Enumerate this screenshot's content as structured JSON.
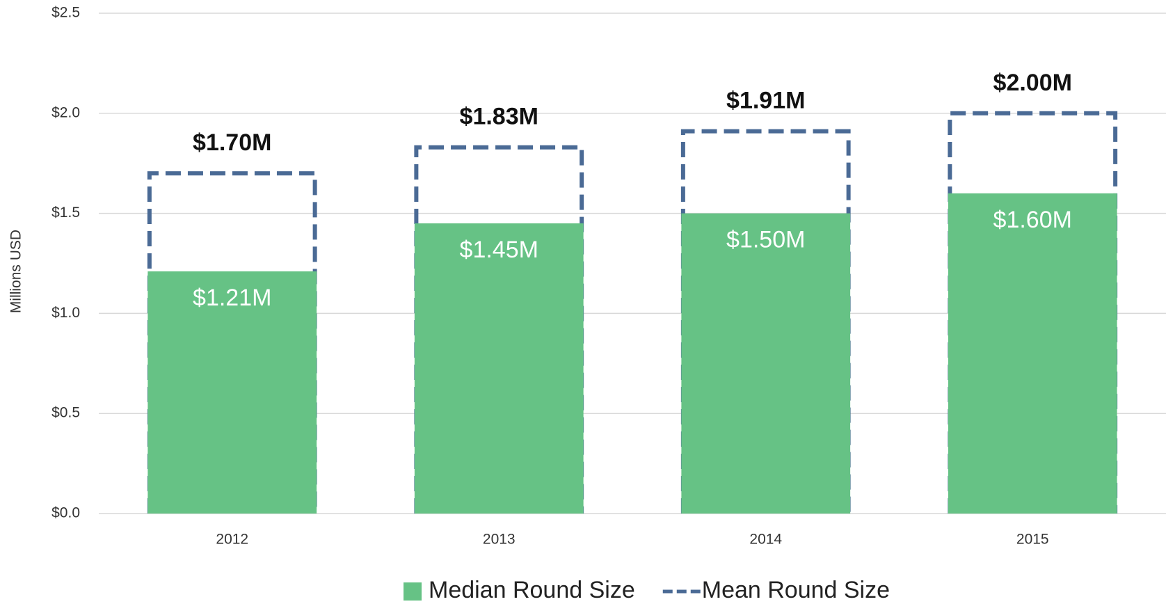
{
  "chart_data": {
    "type": "bar",
    "y_label": "Millions USD",
    "categories": [
      "2012",
      "2013",
      "2014",
      "2015"
    ],
    "series": [
      {
        "name": "Median Round Size",
        "color": "#66c285",
        "dashed": false,
        "values": [
          1.21,
          1.45,
          1.5,
          1.6
        ],
        "value_labels": [
          "$1.21M",
          "$1.45M",
          "$1.50M",
          "$1.60M"
        ]
      },
      {
        "name": "Mean Round Size",
        "color": "#4a6a95",
        "dashed": true,
        "values": [
          1.7,
          1.83,
          1.91,
          2.0
        ],
        "value_labels": [
          "$1.70M",
          "$1.83M",
          "$1.91M",
          "$2.00M"
        ]
      }
    ],
    "ylim": [
      0,
      2.5
    ],
    "yticks": [
      {
        "value": 0,
        "label": "$0.0"
      },
      {
        "value": 0.5,
        "label": "$0.5"
      },
      {
        "value": 1,
        "label": "$1.0"
      },
      {
        "value": 1.5,
        "label": "$1.5"
      },
      {
        "value": 2,
        "label": "$2.0"
      },
      {
        "value": 2.5,
        "label": "$2.5"
      }
    ],
    "grid": true,
    "legend": "bottom"
  }
}
